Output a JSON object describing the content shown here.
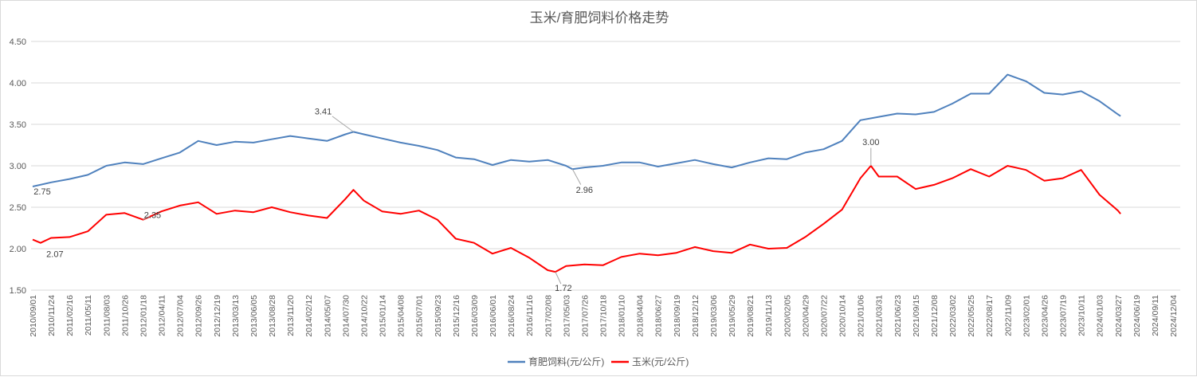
{
  "chart_data": {
    "type": "line",
    "title": "玉米/育肥饲料价格走势",
    "xlabel": "",
    "ylabel": "",
    "ylim": [
      1.5,
      4.5
    ],
    "yticks": [
      "1.50",
      "2.00",
      "2.50",
      "3.00",
      "3.50",
      "4.00",
      "4.50"
    ],
    "grid": true,
    "legend_position": "bottom",
    "xticks": [
      "2010/09/01",
      "2010/11/24",
      "2011/02/16",
      "2011/05/11",
      "2011/08/03",
      "2011/10/26",
      "2012/01/18",
      "2012/04/11",
      "2012/07/04",
      "2012/09/26",
      "2012/12/19",
      "2013/03/13",
      "2013/06/05",
      "2013/08/28",
      "2013/11/20",
      "2014/02/12",
      "2014/05/07",
      "2014/07/30",
      "2014/10/22",
      "2015/01/14",
      "2015/04/08",
      "2015/07/01",
      "2015/09/23",
      "2015/12/16",
      "2016/03/09",
      "2016/06/01",
      "2016/08/24",
      "2016/11/16",
      "2017/02/08",
      "2017/05/03",
      "2017/07/26",
      "2017/10/18",
      "2018/01/10",
      "2018/04/04",
      "2018/06/27",
      "2018/09/19",
      "2018/12/12",
      "2019/03/06",
      "2019/05/29",
      "2019/08/21",
      "2019/11/13",
      "2020/02/05",
      "2020/04/29",
      "2020/07/22",
      "2020/10/14",
      "2021/01/06",
      "2021/03/31",
      "2021/06/23",
      "2021/09/15",
      "2021/12/08",
      "2022/03/02",
      "2022/05/25",
      "2022/08/17",
      "2022/11/09",
      "2023/02/01",
      "2023/04/26",
      "2023/07/19",
      "2023/10/11",
      "2024/01/03",
      "2024/03/27",
      "2024/06/19",
      "2024/09/11",
      "2024/12/04"
    ],
    "series": [
      {
        "name": "育肥饲料(元/公斤)",
        "color": "#4f81bd",
        "points": [
          [
            "2010/09/01",
            2.75
          ],
          [
            "2010/11/24",
            2.8
          ],
          [
            "2011/02/16",
            2.84
          ],
          [
            "2011/05/11",
            2.89
          ],
          [
            "2011/08/03",
            3.0
          ],
          [
            "2011/10/26",
            3.04
          ],
          [
            "2012/01/18",
            3.02
          ],
          [
            "2012/04/11",
            3.09
          ],
          [
            "2012/07/04",
            3.16
          ],
          [
            "2012/09/26",
            3.3
          ],
          [
            "2012/12/19",
            3.25
          ],
          [
            "2013/03/13",
            3.29
          ],
          [
            "2013/06/05",
            3.28
          ],
          [
            "2013/08/28",
            3.32
          ],
          [
            "2013/11/20",
            3.36
          ],
          [
            "2014/02/12",
            3.33
          ],
          [
            "2014/05/07",
            3.3
          ],
          [
            "2014/07/30",
            3.38
          ],
          [
            "2014/09/05",
            3.41
          ],
          [
            "2014/10/22",
            3.38
          ],
          [
            "2015/01/14",
            3.33
          ],
          [
            "2015/04/08",
            3.28
          ],
          [
            "2015/07/01",
            3.24
          ],
          [
            "2015/09/23",
            3.19
          ],
          [
            "2015/12/16",
            3.1
          ],
          [
            "2016/03/09",
            3.08
          ],
          [
            "2016/06/01",
            3.01
          ],
          [
            "2016/08/24",
            3.07
          ],
          [
            "2016/11/16",
            3.05
          ],
          [
            "2017/02/08",
            3.07
          ],
          [
            "2017/05/03",
            3.0
          ],
          [
            "2017/06/01",
            2.96
          ],
          [
            "2017/07/26",
            2.98
          ],
          [
            "2017/10/18",
            3.0
          ],
          [
            "2018/01/10",
            3.04
          ],
          [
            "2018/04/04",
            3.04
          ],
          [
            "2018/06/27",
            2.99
          ],
          [
            "2018/09/19",
            3.03
          ],
          [
            "2018/12/12",
            3.07
          ],
          [
            "2019/03/06",
            3.02
          ],
          [
            "2019/05/29",
            2.98
          ],
          [
            "2019/08/21",
            3.04
          ],
          [
            "2019/11/13",
            3.09
          ],
          [
            "2020/02/05",
            3.08
          ],
          [
            "2020/04/29",
            3.16
          ],
          [
            "2020/07/22",
            3.2
          ],
          [
            "2020/10/14",
            3.3
          ],
          [
            "2021/01/06",
            3.55
          ],
          [
            "2021/03/31",
            3.59
          ],
          [
            "2021/06/23",
            3.63
          ],
          [
            "2021/09/15",
            3.62
          ],
          [
            "2021/12/08",
            3.65
          ],
          [
            "2022/03/02",
            3.75
          ],
          [
            "2022/05/25",
            3.87
          ],
          [
            "2022/08/17",
            3.87
          ],
          [
            "2022/11/09",
            4.1
          ],
          [
            "2023/02/01",
            4.02
          ],
          [
            "2023/04/26",
            3.88
          ],
          [
            "2023/07/19",
            3.86
          ],
          [
            "2023/10/11",
            3.9
          ],
          [
            "2024/01/03",
            3.78
          ],
          [
            "2024/03/27",
            3.62
          ],
          [
            "2024/04/08",
            3.6
          ]
        ]
      },
      {
        "name": "玉米(元/公斤)",
        "color": "#ff0000",
        "points": [
          [
            "2010/09/01",
            2.11
          ],
          [
            "2010/10/07",
            2.07
          ],
          [
            "2010/11/24",
            2.13
          ],
          [
            "2011/02/16",
            2.14
          ],
          [
            "2011/05/11",
            2.21
          ],
          [
            "2011/08/03",
            2.41
          ],
          [
            "2011/10/26",
            2.43
          ],
          [
            "2012/01/18",
            2.35
          ],
          [
            "2012/04/11",
            2.45
          ],
          [
            "2012/07/04",
            2.52
          ],
          [
            "2012/09/26",
            2.56
          ],
          [
            "2012/12/19",
            2.42
          ],
          [
            "2013/03/13",
            2.46
          ],
          [
            "2013/06/05",
            2.44
          ],
          [
            "2013/08/28",
            2.5
          ],
          [
            "2013/11/20",
            2.44
          ],
          [
            "2014/02/12",
            2.4
          ],
          [
            "2014/05/07",
            2.37
          ],
          [
            "2014/07/30",
            2.6
          ],
          [
            "2014/09/05",
            2.71
          ],
          [
            "2014/10/22",
            2.58
          ],
          [
            "2015/01/14",
            2.45
          ],
          [
            "2015/04/08",
            2.42
          ],
          [
            "2015/07/01",
            2.46
          ],
          [
            "2015/09/23",
            2.35
          ],
          [
            "2015/12/16",
            2.12
          ],
          [
            "2016/03/09",
            2.07
          ],
          [
            "2016/06/01",
            1.94
          ],
          [
            "2016/08/24",
            2.01
          ],
          [
            "2016/11/16",
            1.89
          ],
          [
            "2017/02/08",
            1.74
          ],
          [
            "2017/03/15",
            1.72
          ],
          [
            "2017/05/03",
            1.79
          ],
          [
            "2017/07/26",
            1.81
          ],
          [
            "2017/10/18",
            1.8
          ],
          [
            "2018/01/10",
            1.9
          ],
          [
            "2018/04/04",
            1.94
          ],
          [
            "2018/06/27",
            1.92
          ],
          [
            "2018/09/19",
            1.95
          ],
          [
            "2018/12/12",
            2.02
          ],
          [
            "2019/03/06",
            1.97
          ],
          [
            "2019/05/29",
            1.95
          ],
          [
            "2019/08/21",
            2.05
          ],
          [
            "2019/11/13",
            2.0
          ],
          [
            "2020/02/05",
            2.01
          ],
          [
            "2020/04/29",
            2.14
          ],
          [
            "2020/07/22",
            2.3
          ],
          [
            "2020/10/14",
            2.47
          ],
          [
            "2021/01/06",
            2.85
          ],
          [
            "2021/02/23",
            3.0
          ],
          [
            "2021/03/31",
            2.87
          ],
          [
            "2021/06/23",
            2.87
          ],
          [
            "2021/09/15",
            2.72
          ],
          [
            "2021/12/08",
            2.77
          ],
          [
            "2022/03/02",
            2.85
          ],
          [
            "2022/05/25",
            2.96
          ],
          [
            "2022/08/17",
            2.87
          ],
          [
            "2022/11/09",
            3.0
          ],
          [
            "2023/02/01",
            2.95
          ],
          [
            "2023/04/26",
            2.82
          ],
          [
            "2023/07/19",
            2.85
          ],
          [
            "2023/10/11",
            2.95
          ],
          [
            "2024/01/03",
            2.65
          ],
          [
            "2024/03/27",
            2.46
          ],
          [
            "2024/04/08",
            2.42
          ]
        ]
      }
    ],
    "annotations": [
      {
        "series": 0,
        "date": "2010/09/01",
        "text": "2.75"
      },
      {
        "series": 1,
        "date": "2010/10/07",
        "text": "2.07"
      },
      {
        "series": 1,
        "date": "2012/01/18",
        "text": "2.35"
      },
      {
        "series": 0,
        "date": "2014/09/05",
        "text": "3.41"
      },
      {
        "series": 0,
        "date": "2017/06/01",
        "text": "2.96"
      },
      {
        "series": 1,
        "date": "2017/03/15",
        "text": "1.72"
      },
      {
        "series": 1,
        "date": "2021/02/23",
        "text": "3.00"
      }
    ]
  }
}
